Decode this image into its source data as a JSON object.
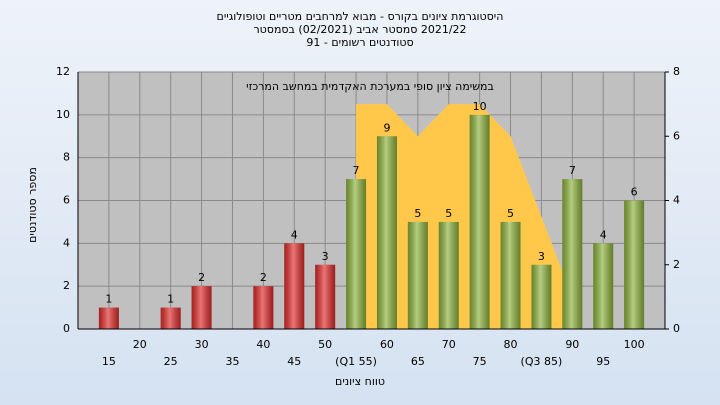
{
  "chart_data": {
    "type": "bar",
    "title": [
      "היסטוגרמת ציונים בקורס - מבוא למרחבים מטריים וטופולוגיים",
      "2021/22  סמסטר אביב  (02/2021)  בסמסטר",
      "סטודנטים רשומים - 91"
    ],
    "y_label": "מספר סטודנטים",
    "x_label": "טווח ציונים",
    "categories": [
      "15",
      "20",
      "25",
      "30",
      "35",
      "40",
      "45",
      "50",
      "(Q1 55)",
      "60",
      "65",
      "70",
      "75",
      "80",
      "(Q3 85)",
      "90",
      "95",
      "100"
    ],
    "series": [
      {
        "name": "מספר סטודנטים",
        "values": [
          1,
          null,
          1,
          2,
          null,
          2,
          4,
          3,
          7,
          9,
          5,
          5,
          10,
          5,
          3,
          7,
          4,
          6
        ],
        "colors": [
          "#e02b2b",
          null,
          "#e02b2b",
          "#e02b2b",
          null,
          "#e02b2b",
          "#e02b2b",
          "#e02b2b",
          "#8db33c",
          "#8db33c",
          "#8db33c",
          "#8db33c",
          "#8db33c",
          "#8db33c",
          "#8db33c",
          "#8db33c",
          "#8db33c",
          "#8db33c"
        ]
      },
      {
        "name": "במשימה  ציון סופי במערכת האקדמית במחשב המרכזי",
        "type": "area",
        "axis": "y2",
        "color": "#ffc84a",
        "values": [
          null,
          null,
          null,
          null,
          null,
          null,
          null,
          null,
          7,
          7,
          6,
          7,
          7,
          6,
          3.5,
          1,
          null,
          null
        ]
      }
    ],
    "ylim": [
      0,
      12
    ],
    "yticks": [
      0,
      2,
      4,
      6,
      8,
      10,
      12
    ],
    "y2lim": [
      0,
      8
    ],
    "y2ticks": [
      0,
      2,
      4,
      6,
      8
    ],
    "grid": true
  }
}
